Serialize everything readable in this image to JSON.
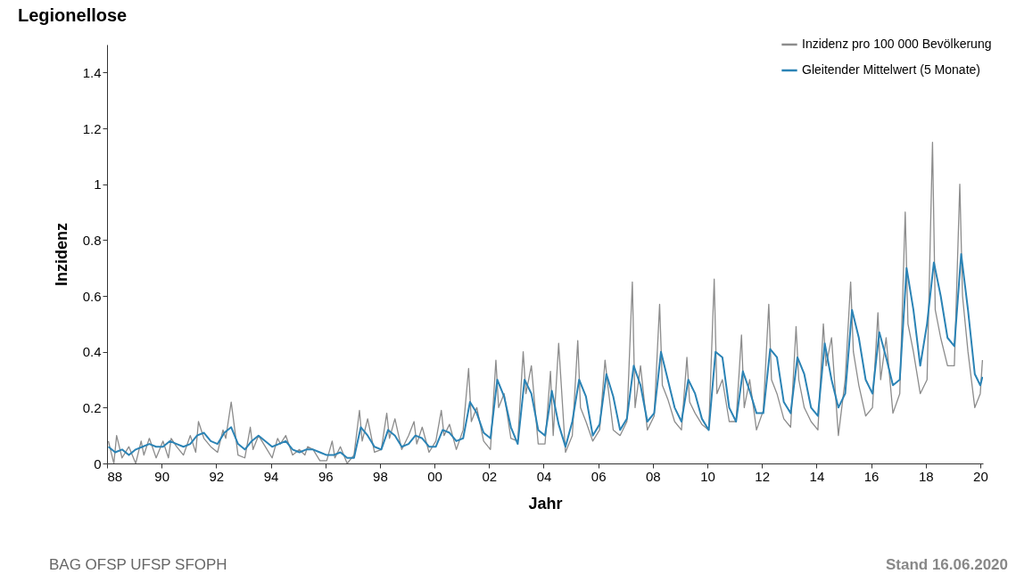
{
  "chart_data": {
    "type": "line",
    "title": "Legionellose",
    "xlabel": "Jahr",
    "ylabel": "Inzidenz",
    "legend": "top right",
    "xlim": [
      1988,
      2020.1
    ],
    "ylim": [
      0,
      1.5
    ],
    "xticks": [
      {
        "value": 1988,
        "label": "88"
      },
      {
        "value": 1990,
        "label": "90"
      },
      {
        "value": 1992,
        "label": "92"
      },
      {
        "value": 1994,
        "label": "94"
      },
      {
        "value": 1996,
        "label": "96"
      },
      {
        "value": 1998,
        "label": "98"
      },
      {
        "value": 2000,
        "label": "00"
      },
      {
        "value": 2002,
        "label": "02"
      },
      {
        "value": 2004,
        "label": "04"
      },
      {
        "value": 2006,
        "label": "06"
      },
      {
        "value": 2008,
        "label": "08"
      },
      {
        "value": 2010,
        "label": "10"
      },
      {
        "value": 2012,
        "label": "12"
      },
      {
        "value": 2014,
        "label": "14"
      },
      {
        "value": 2016,
        "label": "16"
      },
      {
        "value": 2018,
        "label": "18"
      },
      {
        "value": 2020,
        "label": "20"
      }
    ],
    "yticks": [
      0,
      0.2,
      0.4,
      0.6,
      0.8,
      1,
      1.2,
      1.4
    ],
    "series": [
      {
        "name": "Inzidenz pro 100 000 Bevölkerung",
        "color": "#8c8c8c",
        "x": [
          1988.05,
          1988.25,
          1988.35,
          1988.55,
          1988.8,
          1989.05,
          1989.25,
          1989.35,
          1989.55,
          1989.8,
          1990.05,
          1990.25,
          1990.35,
          1990.55,
          1990.8,
          1991.05,
          1991.25,
          1991.35,
          1991.55,
          1991.8,
          1992.05,
          1992.25,
          1992.35,
          1992.55,
          1992.8,
          1993.05,
          1993.25,
          1993.35,
          1993.55,
          1993.8,
          1994.05,
          1994.25,
          1994.35,
          1994.55,
          1994.8,
          1995.05,
          1995.25,
          1995.35,
          1995.55,
          1995.8,
          1996.05,
          1996.25,
          1996.35,
          1996.55,
          1996.8,
          1997.05,
          1997.25,
          1997.35,
          1997.55,
          1997.8,
          1998.05,
          1998.25,
          1998.35,
          1998.55,
          1998.8,
          1999.05,
          1999.25,
          1999.35,
          1999.55,
          1999.8,
          2000.05,
          2000.25,
          2000.35,
          2000.55,
          2000.8,
          2001.05,
          2001.25,
          2001.35,
          2001.55,
          2001.8,
          2002.05,
          2002.25,
          2002.35,
          2002.55,
          2002.8,
          2003.05,
          2003.25,
          2003.35,
          2003.55,
          2003.8,
          2004.05,
          2004.25,
          2004.35,
          2004.55,
          2004.8,
          2005.05,
          2005.25,
          2005.35,
          2005.55,
          2005.8,
          2006.05,
          2006.25,
          2006.35,
          2006.55,
          2006.8,
          2007.05,
          2007.25,
          2007.35,
          2007.55,
          2007.8,
          2008.05,
          2008.25,
          2008.35,
          2008.55,
          2008.8,
          2009.05,
          2009.25,
          2009.35,
          2009.55,
          2009.8,
          2010.05,
          2010.25,
          2010.35,
          2010.55,
          2010.8,
          2011.05,
          2011.25,
          2011.35,
          2011.55,
          2011.8,
          2012.05,
          2012.25,
          2012.35,
          2012.55,
          2012.8,
          2013.05,
          2013.25,
          2013.35,
          2013.55,
          2013.8,
          2014.05,
          2014.25,
          2014.35,
          2014.55,
          2014.8,
          2015.05,
          2015.25,
          2015.35,
          2015.55,
          2015.8,
          2016.05,
          2016.25,
          2016.35,
          2016.55,
          2016.8,
          2017.05,
          2017.25,
          2017.35,
          2017.55,
          2017.8,
          2018.05,
          2018.25,
          2018.35,
          2018.55,
          2018.8,
          2019.05,
          2019.25,
          2019.35,
          2019.55,
          2019.8,
          2020,
          2020.08
        ],
        "values": [
          0.08,
          0,
          0.1,
          0.02,
          0.06,
          0,
          0.08,
          0.03,
          0.09,
          0.02,
          0.08,
          0.02,
          0.09,
          0.06,
          0.03,
          0.1,
          0.04,
          0.15,
          0.09,
          0.06,
          0.04,
          0.12,
          0.09,
          0.22,
          0.03,
          0.02,
          0.13,
          0.05,
          0.1,
          0.06,
          0.02,
          0.09,
          0.07,
          0.1,
          0.03,
          0.05,
          0.03,
          0.06,
          0.05,
          0.01,
          0.01,
          0.08,
          0.02,
          0.06,
          0,
          0.03,
          0.19,
          0.08,
          0.16,
          0.04,
          0.05,
          0.18,
          0.09,
          0.16,
          0.05,
          0.1,
          0.15,
          0.07,
          0.13,
          0.04,
          0.08,
          0.19,
          0.1,
          0.14,
          0.05,
          0.12,
          0.34,
          0.15,
          0.2,
          0.08,
          0.05,
          0.37,
          0.2,
          0.25,
          0.09,
          0.08,
          0.4,
          0.25,
          0.35,
          0.07,
          0.07,
          0.33,
          0.1,
          0.43,
          0.04,
          0.1,
          0.44,
          0.2,
          0.15,
          0.08,
          0.12,
          0.37,
          0.28,
          0.12,
          0.1,
          0.15,
          0.65,
          0.2,
          0.35,
          0.12,
          0.17,
          0.57,
          0.28,
          0.23,
          0.15,
          0.12,
          0.38,
          0.22,
          0.18,
          0.14,
          0.12,
          0.66,
          0.25,
          0.3,
          0.15,
          0.15,
          0.46,
          0.2,
          0.3,
          0.12,
          0.19,
          0.57,
          0.3,
          0.25,
          0.16,
          0.13,
          0.49,
          0.3,
          0.2,
          0.15,
          0.12,
          0.5,
          0.35,
          0.45,
          0.1,
          0.3,
          0.65,
          0.4,
          0.28,
          0.17,
          0.2,
          0.54,
          0.3,
          0.45,
          0.18,
          0.25,
          0.9,
          0.5,
          0.4,
          0.25,
          0.3,
          1.15,
          0.55,
          0.45,
          0.35,
          0.35,
          1,
          0.6,
          0.4,
          0.2,
          0.25,
          0.37
        ]
      },
      {
        "name": "Gleitender Mittelwert (5 Monate)",
        "color": "#2b83b5",
        "x": [
          1988.05,
          1988.3,
          1988.55,
          1988.8,
          1989.05,
          1989.3,
          1989.55,
          1989.8,
          1990.05,
          1990.3,
          1990.55,
          1990.8,
          1991.05,
          1991.3,
          1991.55,
          1991.8,
          1992.05,
          1992.3,
          1992.55,
          1992.8,
          1993.05,
          1993.3,
          1993.55,
          1993.8,
          1994.05,
          1994.3,
          1994.55,
          1994.8,
          1995.05,
          1995.3,
          1995.55,
          1995.8,
          1996.05,
          1996.3,
          1996.55,
          1996.8,
          1997.05,
          1997.3,
          1997.55,
          1997.8,
          1998.05,
          1998.3,
          1998.55,
          1998.8,
          1999.05,
          1999.3,
          1999.55,
          1999.8,
          2000.05,
          2000.3,
          2000.55,
          2000.8,
          2001.05,
          2001.3,
          2001.55,
          2001.8,
          2002.05,
          2002.3,
          2002.55,
          2002.8,
          2003.05,
          2003.3,
          2003.55,
          2003.8,
          2004.05,
          2004.3,
          2004.55,
          2004.8,
          2005.05,
          2005.3,
          2005.55,
          2005.8,
          2006.05,
          2006.3,
          2006.55,
          2006.8,
          2007.05,
          2007.3,
          2007.55,
          2007.8,
          2008.05,
          2008.3,
          2008.55,
          2008.8,
          2009.05,
          2009.3,
          2009.55,
          2009.8,
          2010.05,
          2010.3,
          2010.55,
          2010.8,
          2011.05,
          2011.3,
          2011.55,
          2011.8,
          2012.05,
          2012.3,
          2012.55,
          2012.8,
          2013.05,
          2013.3,
          2013.55,
          2013.8,
          2014.05,
          2014.3,
          2014.55,
          2014.8,
          2015.05,
          2015.3,
          2015.55,
          2015.8,
          2016.05,
          2016.3,
          2016.55,
          2016.8,
          2017.05,
          2017.3,
          2017.55,
          2017.8,
          2018.05,
          2018.3,
          2018.55,
          2018.8,
          2019.05,
          2019.3,
          2019.55,
          2019.8,
          2020,
          2020.08
        ],
        "values": [
          0.06,
          0.04,
          0.05,
          0.03,
          0.05,
          0.06,
          0.07,
          0.06,
          0.06,
          0.08,
          0.07,
          0.06,
          0.07,
          0.1,
          0.11,
          0.08,
          0.07,
          0.11,
          0.13,
          0.07,
          0.05,
          0.08,
          0.1,
          0.08,
          0.06,
          0.07,
          0.08,
          0.05,
          0.04,
          0.05,
          0.05,
          0.04,
          0.03,
          0.03,
          0.04,
          0.02,
          0.02,
          0.13,
          0.1,
          0.06,
          0.05,
          0.12,
          0.1,
          0.06,
          0.07,
          0.1,
          0.09,
          0.06,
          0.06,
          0.12,
          0.11,
          0.08,
          0.09,
          0.22,
          0.18,
          0.11,
          0.09,
          0.3,
          0.24,
          0.13,
          0.07,
          0.3,
          0.25,
          0.12,
          0.1,
          0.26,
          0.14,
          0.06,
          0.15,
          0.3,
          0.24,
          0.1,
          0.14,
          0.32,
          0.24,
          0.12,
          0.16,
          0.35,
          0.28,
          0.15,
          0.18,
          0.4,
          0.3,
          0.2,
          0.15,
          0.3,
          0.25,
          0.16,
          0.12,
          0.4,
          0.38,
          0.2,
          0.15,
          0.33,
          0.26,
          0.18,
          0.18,
          0.41,
          0.38,
          0.22,
          0.18,
          0.38,
          0.32,
          0.2,
          0.17,
          0.43,
          0.3,
          0.2,
          0.25,
          0.55,
          0.45,
          0.3,
          0.25,
          0.47,
          0.38,
          0.28,
          0.3,
          0.7,
          0.55,
          0.35,
          0.5,
          0.72,
          0.6,
          0.45,
          0.42,
          0.75,
          0.55,
          0.32,
          0.28,
          0.31
        ]
      }
    ],
    "annotations": [
      "BAG OFSP UFSP SFOPH",
      "Stand 16.06.2020"
    ]
  }
}
